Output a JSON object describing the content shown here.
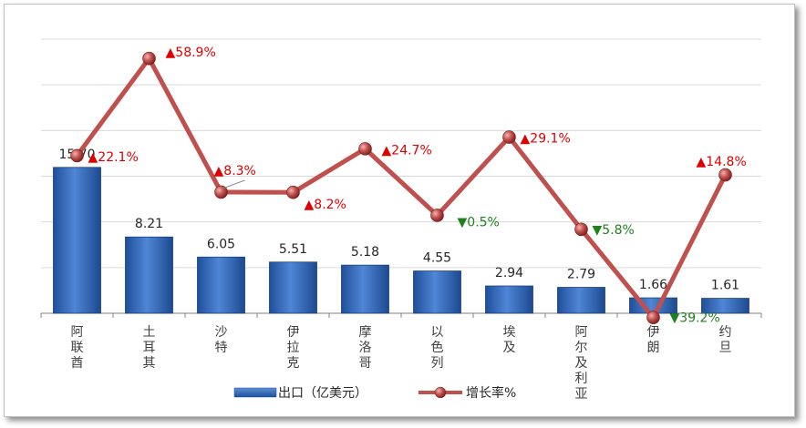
{
  "chart_data": {
    "type": "bar",
    "categories": [
      "阿联酋",
      "土耳其",
      "沙特",
      "伊拉克",
      "摩洛哥",
      "以色列",
      "埃及",
      "阿尔及利亚",
      "伊朗",
      "约旦"
    ],
    "series": [
      {
        "name": "出口（亿美元）",
        "type": "bar",
        "values": [
          15.7,
          8.21,
          6.05,
          5.51,
          5.18,
          4.55,
          2.94,
          2.79,
          1.66,
          1.61
        ],
        "labels": [
          "15.70",
          "8.21",
          "6.05",
          "5.51",
          "5.18",
          "4.55",
          "2.94",
          "2.79",
          "1.66",
          "1.61"
        ],
        "color": "#3a6fc4"
      },
      {
        "name": "增长率%",
        "type": "line",
        "values": [
          22.1,
          58.9,
          8.3,
          8.2,
          24.7,
          -0.5,
          29.1,
          -5.8,
          -39.2,
          14.8
        ],
        "labels": [
          "22.1%",
          "58.9%",
          "8.3%",
          "8.2%",
          "24.7%",
          "0.5%",
          "29.1%",
          "5.8%",
          "39.2%",
          "14.8%"
        ],
        "color": "#c0504d"
      }
    ],
    "up_marker": "▲",
    "down_marker": "▼",
    "up_color": "#e00000",
    "down_color": "#208020",
    "grid": true,
    "legend": "bottom"
  }
}
